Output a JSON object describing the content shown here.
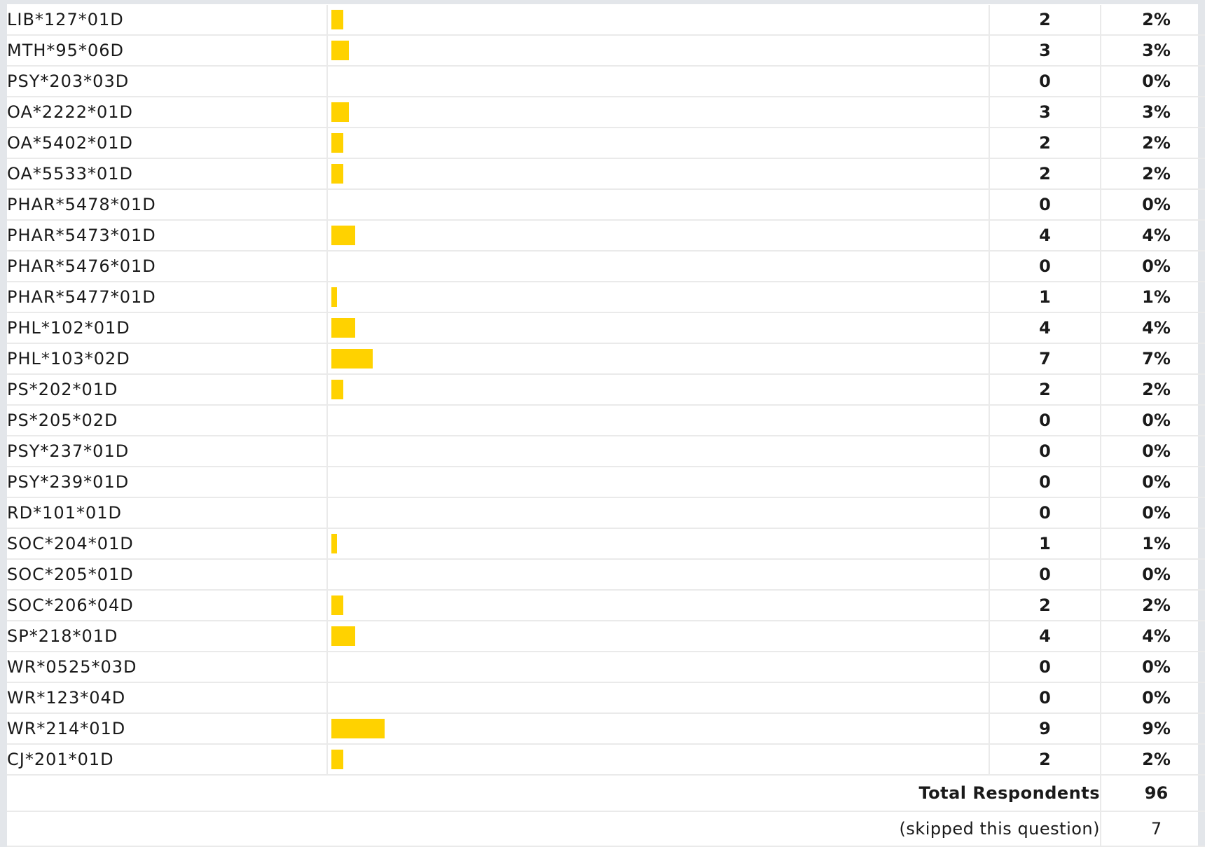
{
  "rows": [
    {
      "label": "LIB*127*01D",
      "count": "2",
      "percent": "2%",
      "pct_value": 2
    },
    {
      "label": "MTH*95*06D",
      "count": "3",
      "percent": "3%",
      "pct_value": 3
    },
    {
      "label": "PSY*203*03D",
      "count": "0",
      "percent": "0%",
      "pct_value": 0
    },
    {
      "label": "OA*2222*01D",
      "count": "3",
      "percent": "3%",
      "pct_value": 3
    },
    {
      "label": "OA*5402*01D",
      "count": "2",
      "percent": "2%",
      "pct_value": 2
    },
    {
      "label": "OA*5533*01D",
      "count": "2",
      "percent": "2%",
      "pct_value": 2
    },
    {
      "label": "PHAR*5478*01D",
      "count": "0",
      "percent": "0%",
      "pct_value": 0
    },
    {
      "label": "PHAR*5473*01D",
      "count": "4",
      "percent": "4%",
      "pct_value": 4
    },
    {
      "label": "PHAR*5476*01D",
      "count": "0",
      "percent": "0%",
      "pct_value": 0
    },
    {
      "label": "PHAR*5477*01D",
      "count": "1",
      "percent": "1%",
      "pct_value": 1
    },
    {
      "label": "PHL*102*01D",
      "count": "4",
      "percent": "4%",
      "pct_value": 4
    },
    {
      "label": "PHL*103*02D",
      "count": "7",
      "percent": "7%",
      "pct_value": 7
    },
    {
      "label": "PS*202*01D",
      "count": "2",
      "percent": "2%",
      "pct_value": 2
    },
    {
      "label": "PS*205*02D",
      "count": "0",
      "percent": "0%",
      "pct_value": 0
    },
    {
      "label": "PSY*237*01D",
      "count": "0",
      "percent": "0%",
      "pct_value": 0
    },
    {
      "label": "PSY*239*01D",
      "count": "0",
      "percent": "0%",
      "pct_value": 0
    },
    {
      "label": "RD*101*01D",
      "count": "0",
      "percent": "0%",
      "pct_value": 0
    },
    {
      "label": "SOC*204*01D",
      "count": "1",
      "percent": "1%",
      "pct_value": 1
    },
    {
      "label": "SOC*205*01D",
      "count": "0",
      "percent": "0%",
      "pct_value": 0
    },
    {
      "label": "SOC*206*04D",
      "count": "2",
      "percent": "2%",
      "pct_value": 2
    },
    {
      "label": "SP*218*01D",
      "count": "4",
      "percent": "4%",
      "pct_value": 4
    },
    {
      "label": "WR*0525*03D",
      "count": "0",
      "percent": "0%",
      "pct_value": 0
    },
    {
      "label": "WR*123*04D",
      "count": "0",
      "percent": "0%",
      "pct_value": 0
    },
    {
      "label": "WR*214*01D",
      "count": "9",
      "percent": "9%",
      "pct_value": 9
    },
    {
      "label": "CJ*201*01D",
      "count": "2",
      "percent": "2%",
      "pct_value": 2
    }
  ],
  "summary": {
    "total_label": "Total Respondents",
    "total_value": "96",
    "skipped_label": "(skipped this question)",
    "skipped_value": "7"
  },
  "colors": {
    "bar": "#ffd200",
    "grid": "#eaeaea",
    "frame": "#e3e6ea"
  }
}
